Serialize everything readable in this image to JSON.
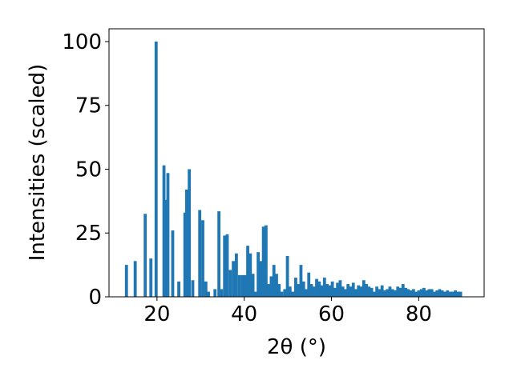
{
  "chart_data": {
    "type": "bar",
    "title": "",
    "xlabel": "2θ (°)",
    "ylabel": "Intensities (scaled)",
    "xlim": [
      9,
      95
    ],
    "ylim": [
      0,
      105
    ],
    "xticks": [
      20,
      40,
      60,
      80
    ],
    "yticks": [
      0,
      25,
      50,
      75,
      100
    ],
    "grid": false,
    "legend": "none",
    "bar_color": "#1f77b4",
    "bar_width": 0.7,
    "points": [
      {
        "x": 13.0,
        "y": 12.5
      },
      {
        "x": 15.0,
        "y": 14.0
      },
      {
        "x": 17.3,
        "y": 32.5
      },
      {
        "x": 18.6,
        "y": 15.0
      },
      {
        "x": 19.8,
        "y": 100.0
      },
      {
        "x": 21.6,
        "y": 51.5
      },
      {
        "x": 22.0,
        "y": 38.0
      },
      {
        "x": 22.5,
        "y": 48.5
      },
      {
        "x": 23.6,
        "y": 26.0
      },
      {
        "x": 25.0,
        "y": 6.0
      },
      {
        "x": 26.4,
        "y": 33.0
      },
      {
        "x": 26.8,
        "y": 42.0
      },
      {
        "x": 27.4,
        "y": 50.0
      },
      {
        "x": 28.2,
        "y": 6.5
      },
      {
        "x": 29.8,
        "y": 34.0
      },
      {
        "x": 30.5,
        "y": 30.0
      },
      {
        "x": 31.2,
        "y": 6.0
      },
      {
        "x": 31.8,
        "y": 2.0
      },
      {
        "x": 33.3,
        "y": 3.0
      },
      {
        "x": 34.2,
        "y": 33.5
      },
      {
        "x": 34.8,
        "y": 3.0
      },
      {
        "x": 35.5,
        "y": 24.0
      },
      {
        "x": 36.1,
        "y": 24.5
      },
      {
        "x": 36.8,
        "y": 10.5
      },
      {
        "x": 37.5,
        "y": 14.0
      },
      {
        "x": 38.2,
        "y": 17.0
      },
      {
        "x": 38.9,
        "y": 8.5
      },
      {
        "x": 39.6,
        "y": 8.5
      },
      {
        "x": 40.2,
        "y": 8.5
      },
      {
        "x": 40.8,
        "y": 20.0
      },
      {
        "x": 41.4,
        "y": 17.0
      },
      {
        "x": 42.0,
        "y": 9.0
      },
      {
        "x": 42.6,
        "y": 2.0
      },
      {
        "x": 43.2,
        "y": 17.5
      },
      {
        "x": 43.8,
        "y": 14.0
      },
      {
        "x": 44.4,
        "y": 27.5
      },
      {
        "x": 45.0,
        "y": 28.0
      },
      {
        "x": 45.6,
        "y": 5.0
      },
      {
        "x": 46.2,
        "y": 8.0
      },
      {
        "x": 46.8,
        "y": 12.5
      },
      {
        "x": 47.4,
        "y": 9.0
      },
      {
        "x": 48.0,
        "y": 5.0
      },
      {
        "x": 48.6,
        "y": 2.0
      },
      {
        "x": 49.3,
        "y": 3.0
      },
      {
        "x": 49.9,
        "y": 16.0
      },
      {
        "x": 50.5,
        "y": 4.0
      },
      {
        "x": 51.1,
        "y": 2.0
      },
      {
        "x": 51.8,
        "y": 7.5
      },
      {
        "x": 52.4,
        "y": 5.0
      },
      {
        "x": 53.0,
        "y": 12.5
      },
      {
        "x": 53.6,
        "y": 6.0
      },
      {
        "x": 54.2,
        "y": 3.0
      },
      {
        "x": 54.8,
        "y": 9.5
      },
      {
        "x": 55.4,
        "y": 5.0
      },
      {
        "x": 56.0,
        "y": 4.0
      },
      {
        "x": 56.6,
        "y": 7.0
      },
      {
        "x": 57.2,
        "y": 6.0
      },
      {
        "x": 57.8,
        "y": 4.5
      },
      {
        "x": 58.4,
        "y": 7.5
      },
      {
        "x": 59.0,
        "y": 5.0
      },
      {
        "x": 59.6,
        "y": 4.5
      },
      {
        "x": 60.2,
        "y": 6.0
      },
      {
        "x": 60.8,
        "y": 3.5
      },
      {
        "x": 61.4,
        "y": 5.5
      },
      {
        "x": 62.0,
        "y": 6.5
      },
      {
        "x": 62.6,
        "y": 4.0
      },
      {
        "x": 63.2,
        "y": 3.0
      },
      {
        "x": 63.8,
        "y": 5.0
      },
      {
        "x": 64.4,
        "y": 4.0
      },
      {
        "x": 65.0,
        "y": 5.5
      },
      {
        "x": 65.6,
        "y": 3.0
      },
      {
        "x": 66.2,
        "y": 4.5
      },
      {
        "x": 66.8,
        "y": 4.0
      },
      {
        "x": 67.4,
        "y": 6.5
      },
      {
        "x": 68.0,
        "y": 5.0
      },
      {
        "x": 68.6,
        "y": 4.0
      },
      {
        "x": 69.2,
        "y": 3.5
      },
      {
        "x": 69.8,
        "y": 2.0
      },
      {
        "x": 70.4,
        "y": 4.0
      },
      {
        "x": 71.0,
        "y": 3.0
      },
      {
        "x": 71.6,
        "y": 4.5
      },
      {
        "x": 72.2,
        "y": 2.5
      },
      {
        "x": 72.8,
        "y": 3.0
      },
      {
        "x": 73.4,
        "y": 4.0
      },
      {
        "x": 74.0,
        "y": 3.0
      },
      {
        "x": 74.6,
        "y": 2.5
      },
      {
        "x": 75.2,
        "y": 4.0
      },
      {
        "x": 75.8,
        "y": 3.5
      },
      {
        "x": 76.4,
        "y": 5.0
      },
      {
        "x": 77.0,
        "y": 3.5
      },
      {
        "x": 77.6,
        "y": 3.0
      },
      {
        "x": 78.2,
        "y": 2.5
      },
      {
        "x": 78.8,
        "y": 3.0
      },
      {
        "x": 79.4,
        "y": 2.0
      },
      {
        "x": 80.0,
        "y": 2.5
      },
      {
        "x": 80.6,
        "y": 3.0
      },
      {
        "x": 81.2,
        "y": 3.5
      },
      {
        "x": 81.8,
        "y": 2.5
      },
      {
        "x": 82.4,
        "y": 3.0
      },
      {
        "x": 83.0,
        "y": 3.0
      },
      {
        "x": 83.6,
        "y": 2.0
      },
      {
        "x": 84.2,
        "y": 2.5
      },
      {
        "x": 84.8,
        "y": 3.0
      },
      {
        "x": 85.4,
        "y": 2.5
      },
      {
        "x": 86.0,
        "y": 2.0
      },
      {
        "x": 86.6,
        "y": 2.5
      },
      {
        "x": 87.2,
        "y": 2.0
      },
      {
        "x": 87.8,
        "y": 2.0
      },
      {
        "x": 88.4,
        "y": 2.5
      },
      {
        "x": 89.0,
        "y": 2.0
      },
      {
        "x": 89.6,
        "y": 2.0
      }
    ]
  }
}
